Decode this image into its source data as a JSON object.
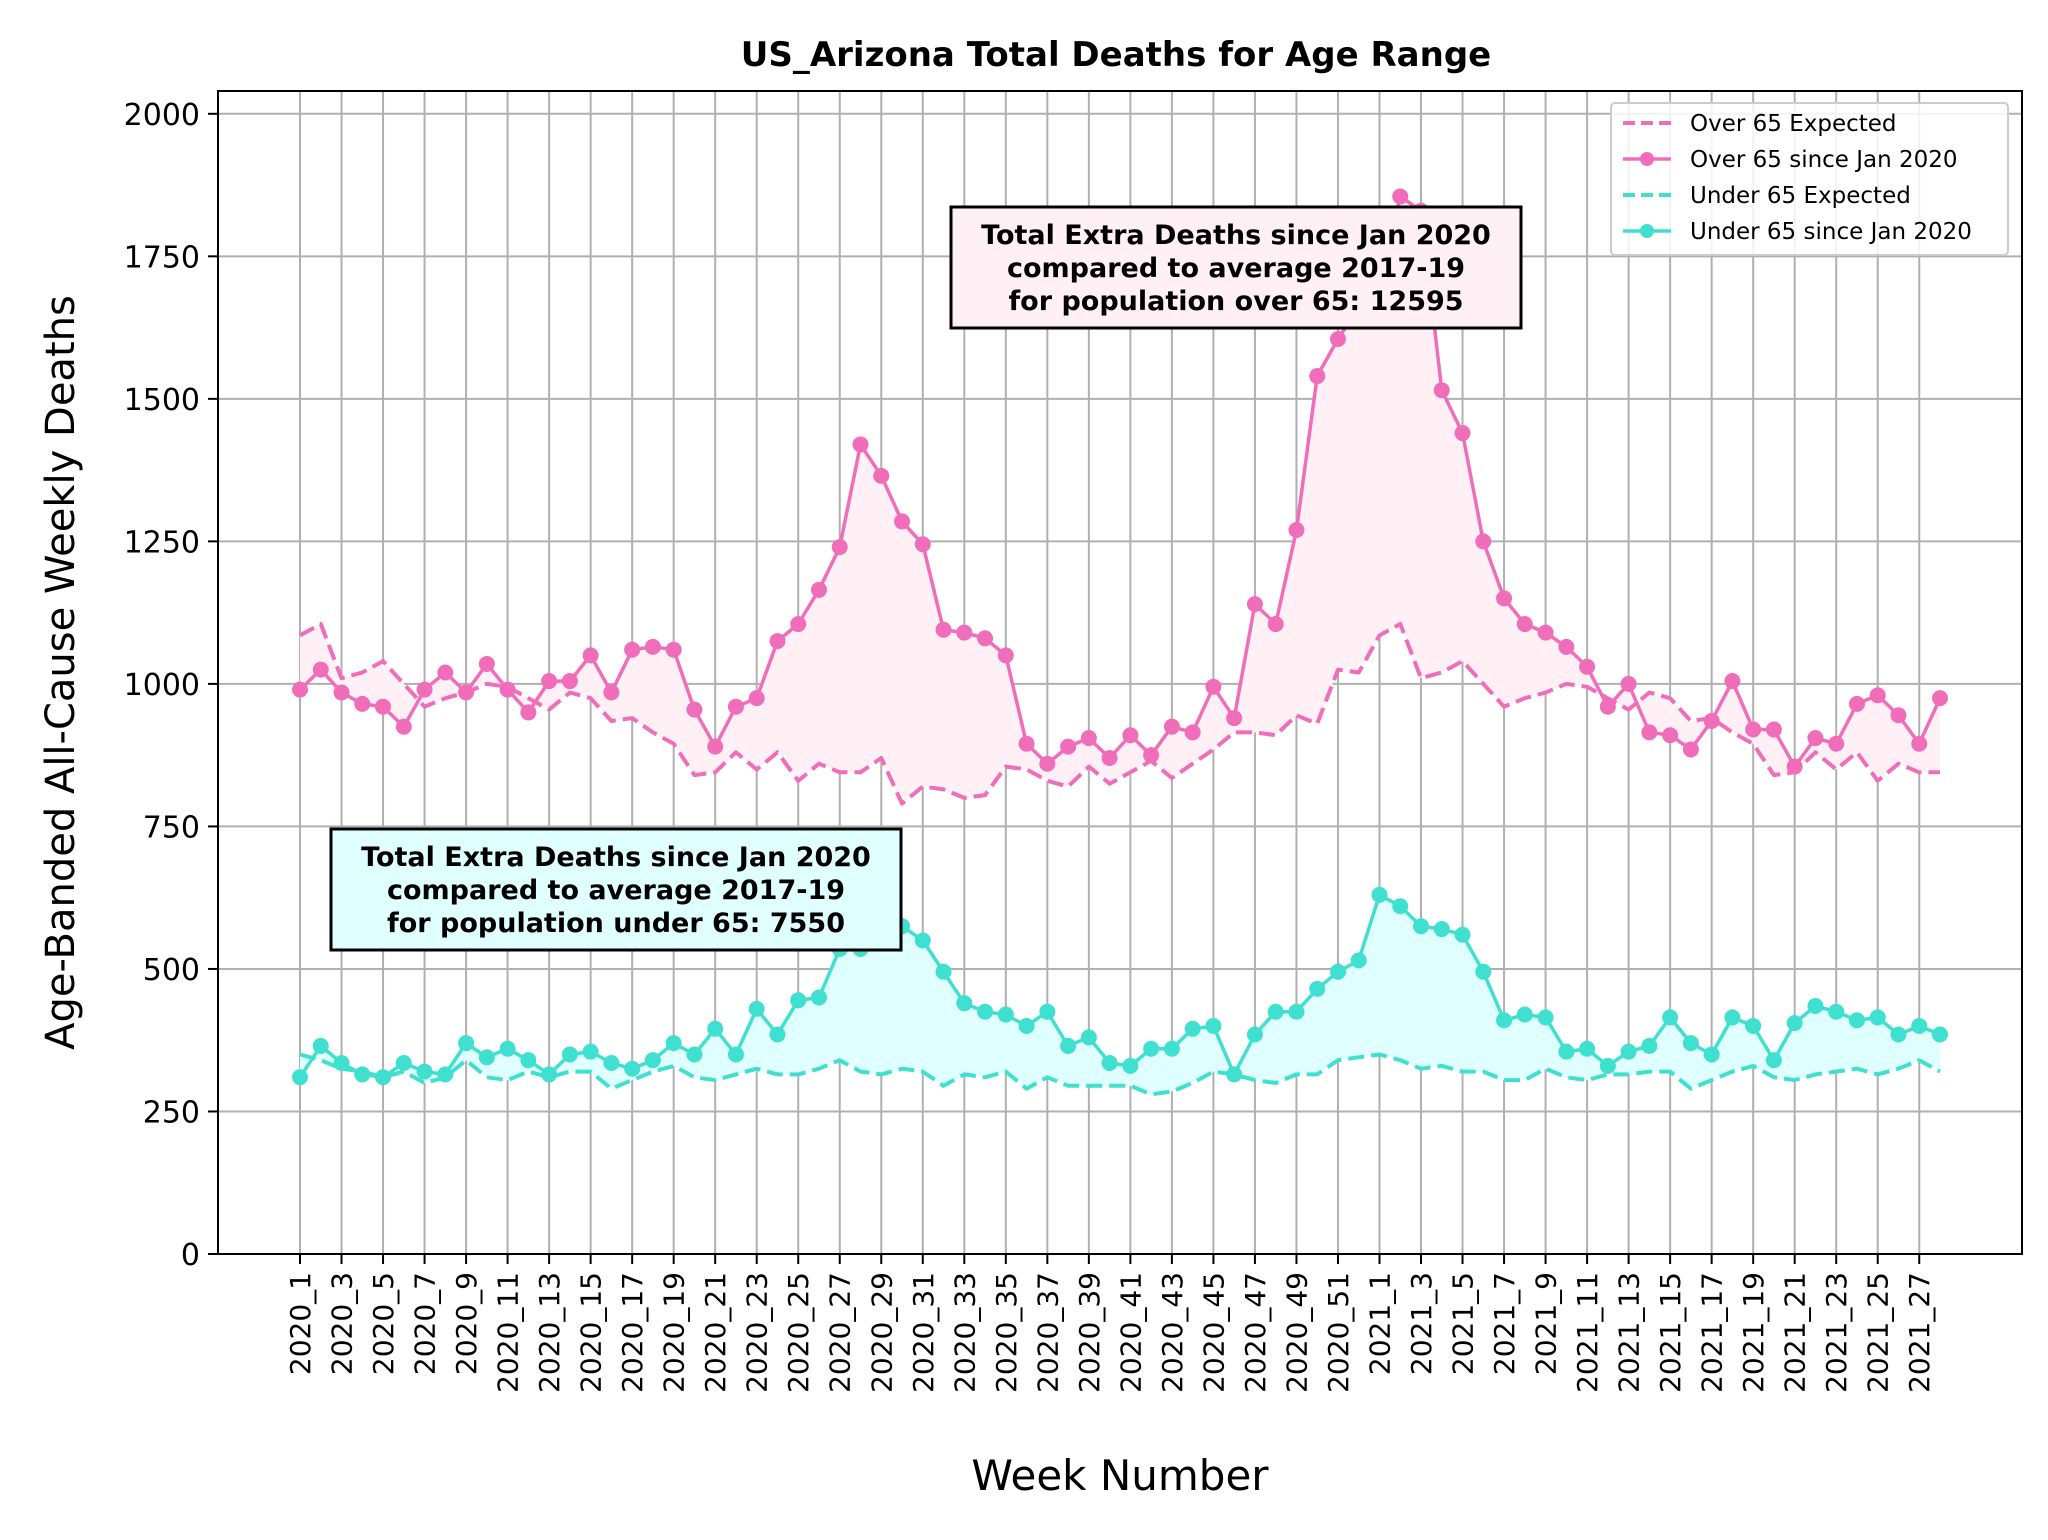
{
  "chart_data": {
    "type": "line",
    "title": "US_Arizona Total Deaths for Age Range",
    "xlabel": "Week Number",
    "ylabel": "Age-Banded All-Cause Weekly Deaths",
    "ylim": [
      0,
      2040
    ],
    "yticks": [
      0,
      250,
      500,
      750,
      1000,
      1250,
      1500,
      1750,
      2000
    ],
    "grid": true,
    "legend_position": "top-right",
    "x": [
      "2020_1",
      "2020_2",
      "2020_3",
      "2020_4",
      "2020_5",
      "2020_6",
      "2020_7",
      "2020_8",
      "2020_9",
      "2020_10",
      "2020_11",
      "2020_12",
      "2020_13",
      "2020_14",
      "2020_15",
      "2020_16",
      "2020_17",
      "2020_18",
      "2020_19",
      "2020_20",
      "2020_21",
      "2020_22",
      "2020_23",
      "2020_24",
      "2020_25",
      "2020_26",
      "2020_27",
      "2020_28",
      "2020_29",
      "2020_30",
      "2020_31",
      "2020_32",
      "2020_33",
      "2020_34",
      "2020_35",
      "2020_36",
      "2020_37",
      "2020_38",
      "2020_39",
      "2020_40",
      "2020_41",
      "2020_42",
      "2020_43",
      "2020_44",
      "2020_45",
      "2020_46",
      "2020_47",
      "2020_48",
      "2020_49",
      "2020_50",
      "2020_51",
      "2020_52",
      "2021_1",
      "2021_2",
      "2021_3",
      "2021_4",
      "2021_5",
      "2021_6",
      "2021_7",
      "2021_8",
      "2021_9",
      "2021_10",
      "2021_11",
      "2021_12",
      "2021_13",
      "2021_14",
      "2021_15",
      "2021_16",
      "2021_17",
      "2021_18",
      "2021_19",
      "2021_20",
      "2021_21",
      "2021_22",
      "2021_23",
      "2021_24",
      "2021_25",
      "2021_26",
      "2021_27",
      "2021_28"
    ],
    "xticks": [
      "2020_1",
      "2020_3",
      "2020_5",
      "2020_7",
      "2020_9",
      "2020_11",
      "2020_13",
      "2020_15",
      "2020_17",
      "2020_19",
      "2020_21",
      "2020_23",
      "2020_25",
      "2020_27",
      "2020_29",
      "2020_31",
      "2020_33",
      "2020_35",
      "2020_37",
      "2020_39",
      "2020_41",
      "2020_43",
      "2020_45",
      "2020_47",
      "2020_49",
      "2020_51",
      "2021_1",
      "2021_3",
      "2021_5",
      "2021_7",
      "2021_9",
      "2021_11",
      "2021_13",
      "2021_15",
      "2021_17",
      "2021_19",
      "2021_21",
      "2021_23",
      "2021_25",
      "2021_27"
    ],
    "series": [
      {
        "name": "Over 65 Expected",
        "color": "#f06eb9",
        "style": "dashed",
        "values": [
          1085,
          1105,
          1010,
          1020,
          1040,
          1000,
          960,
          975,
          985,
          1000,
          995,
          975,
          955,
          985,
          975,
          935,
          940,
          915,
          895,
          840,
          845,
          880,
          850,
          880,
          830,
          860,
          845,
          845,
          870,
          790,
          820,
          815,
          800,
          805,
          855,
          850,
          830,
          820,
          855,
          825,
          845,
          865,
          835,
          860,
          885,
          915,
          915,
          910,
          945,
          930,
          1025,
          1020,
          1085,
          1105,
          1010,
          1020,
          1040,
          1000,
          960,
          975,
          985,
          1000,
          995,
          975,
          955,
          985,
          975,
          935,
          940,
          915,
          895,
          840,
          845,
          880,
          850,
          880,
          830,
          860,
          845,
          845
        ]
      },
      {
        "name": "Over 65 since Jan 2020",
        "color": "#f06eb9",
        "style": "solid-marker",
        "values": [
          990,
          1025,
          985,
          965,
          960,
          925,
          990,
          1020,
          985,
          1035,
          990,
          950,
          1005,
          1005,
          1050,
          985,
          1060,
          1065,
          1060,
          955,
          890,
          960,
          975,
          1075,
          1105,
          1165,
          1240,
          1420,
          1365,
          1285,
          1245,
          1095,
          1090,
          1080,
          1050,
          895,
          860,
          890,
          905,
          870,
          910,
          875,
          925,
          915,
          995,
          940,
          1140,
          1105,
          1270,
          1540,
          1605,
          1660,
          1700,
          1855,
          1830,
          1515,
          1440,
          1250,
          1150,
          1105,
          1090,
          1065,
          1030,
          960,
          1000,
          915,
          910,
          885,
          935,
          1005,
          920,
          920,
          855,
          905,
          895,
          965,
          980,
          945,
          895,
          975
        ]
      },
      {
        "name": "Under 65 Expected",
        "color": "#40e0d0",
        "style": "dashed",
        "values": [
          350,
          340,
          325,
          320,
          310,
          320,
          300,
          310,
          340,
          310,
          305,
          320,
          310,
          320,
          320,
          290,
          305,
          320,
          330,
          310,
          305,
          315,
          325,
          315,
          315,
          325,
          340,
          320,
          315,
          325,
          320,
          295,
          315,
          310,
          320,
          290,
          310,
          295,
          295,
          295,
          295,
          280,
          285,
          300,
          320,
          315,
          305,
          300,
          315,
          315,
          340,
          345,
          350,
          340,
          325,
          330,
          320,
          320,
          305,
          305,
          325,
          310,
          305,
          315,
          315,
          320,
          320,
          290,
          305,
          320,
          330,
          310,
          305,
          315,
          320,
          325,
          315,
          325,
          340,
          320
        ]
      },
      {
        "name": "Under 65 since Jan 2020",
        "color": "#40e0d0",
        "style": "solid-marker",
        "values": [
          310,
          365,
          335,
          315,
          310,
          335,
          320,
          315,
          370,
          345,
          360,
          340,
          315,
          350,
          355,
          335,
          325,
          340,
          370,
          350,
          395,
          350,
          430,
          385,
          445,
          450,
          535,
          535,
          560,
          575,
          550,
          495,
          440,
          425,
          420,
          400,
          425,
          365,
          380,
          335,
          330,
          360,
          360,
          395,
          400,
          315,
          385,
          425,
          425,
          465,
          495,
          515,
          630,
          610,
          575,
          570,
          560,
          495,
          410,
          420,
          415,
          355,
          360,
          330,
          355,
          365,
          415,
          370,
          350,
          415,
          400,
          340,
          405,
          435,
          425,
          410,
          415,
          385,
          400,
          385
        ]
      }
    ],
    "annotations": [
      {
        "lines": [
          "Total Extra Deaths since Jan 2020",
          "compared to average 2017-19",
          "for population over 65: 12595"
        ],
        "fill": "#fff0f5"
      },
      {
        "lines": [
          "Total Extra Deaths since Jan 2020",
          "compared to average 2017-19",
          "for population under 65: 7550"
        ],
        "fill": "#e0ffff"
      }
    ]
  }
}
